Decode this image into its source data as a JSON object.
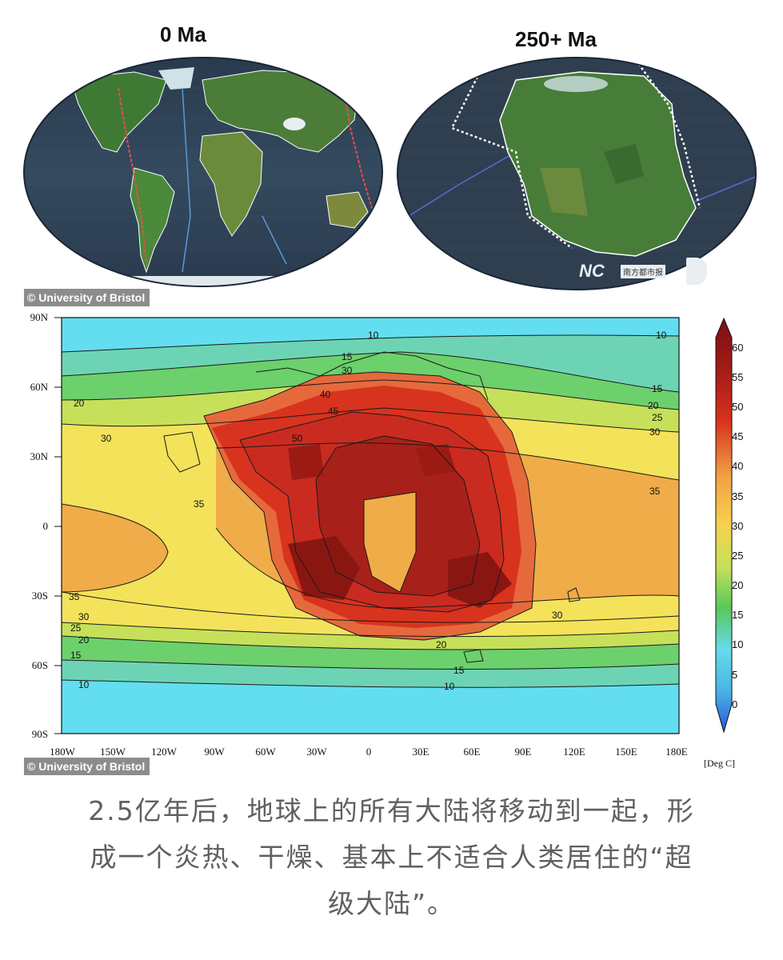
{
  "globes": {
    "left_title": "0 Ma",
    "right_title": "250+ Ma",
    "watermark": {
      "logo_text": "NC",
      "sub_text": "南方都市报"
    }
  },
  "credit_top": "© University of Bristol",
  "credit_bottom": "© University of Bristol",
  "heatmap": {
    "unit_label": "[Deg C]",
    "y_ticks": [
      "90N",
      "60N",
      "30N",
      "0",
      "30S",
      "60S",
      "90S"
    ],
    "x_ticks": [
      "180W",
      "150W",
      "120W",
      "90W",
      "60W",
      "30W",
      "0",
      "30E",
      "60E",
      "90E",
      "120E",
      "150E",
      "180E"
    ],
    "colorbar_ticks": [
      "60",
      "55",
      "50",
      "45",
      "40",
      "35",
      "30",
      "25",
      "20",
      "15",
      "10",
      "5",
      "0"
    ],
    "contour_labels_left": [
      "20",
      "30",
      "35",
      "35",
      "30",
      "25",
      "20",
      "15",
      "10"
    ],
    "contour_labels_right": [
      "10",
      "15",
      "20",
      "25",
      "30",
      "35",
      "30"
    ],
    "contour_labels_inner": [
      "10",
      "15",
      "30",
      "40",
      "45",
      "50",
      "20",
      "15",
      "10"
    ],
    "colors": {
      "ocean_cold": "#62def0",
      "cool": "#6cd06c",
      "mild": "#f4e25a",
      "warm": "#f0ac48",
      "hot": "#e6693c",
      "very_hot": "#c92b20",
      "extreme": "#9c1a14"
    }
  },
  "caption": {
    "line1": "2.5亿年后，地球上的所有大陆将移动到一起，形",
    "line2": "成一个炎热、干燥、基本上不适合人类居住的“超",
    "line3": "级大陆”。"
  }
}
